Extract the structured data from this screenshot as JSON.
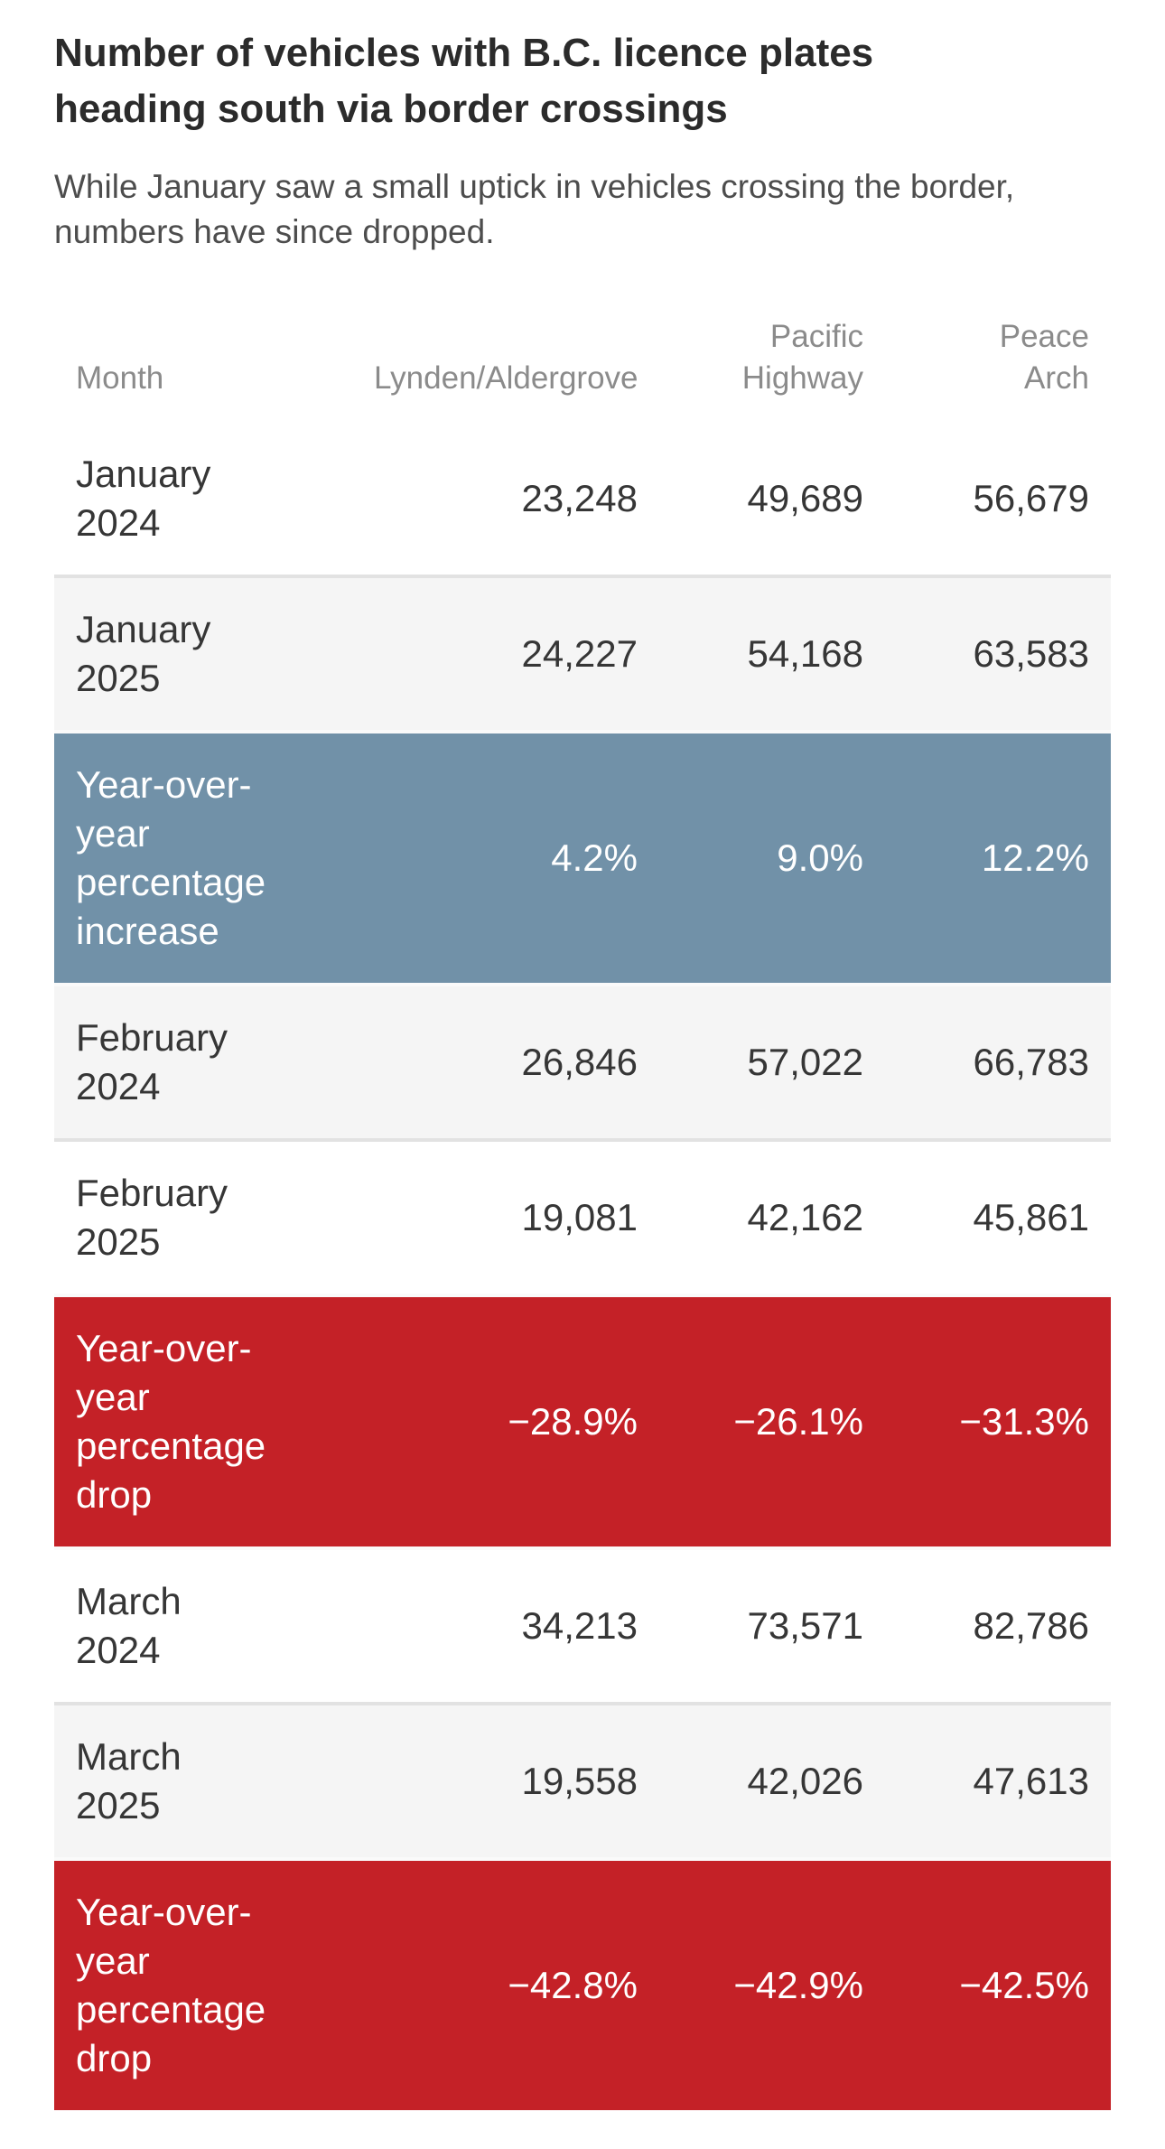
{
  "title": "Number of vehicles with B.C. licence plates heading south via border crossings",
  "subtitle": "While January saw a small uptick in vehicles crossing the border, numbers have since dropped.",
  "colors": {
    "increase_row": "#7191a8",
    "drop_row": "#c42127",
    "stripe_row": "#f5f5f5",
    "row_border": "#e2e2e2",
    "title_text": "#2b2b2b",
    "subtitle_text": "#4d4d4d",
    "header_text": "#8b8b8b",
    "cell_text": "#363636",
    "highlight_text": "#ffffff"
  },
  "table": {
    "columns": [
      "Month",
      "Lynden/Aldergrove",
      "Pacific Highway",
      "Peace Arch"
    ],
    "rows": [
      {
        "label": "January",
        "sublabel": "2024",
        "values": [
          "23,248",
          "49,689",
          "56,679"
        ],
        "variant": "plain"
      },
      {
        "label": "January",
        "sublabel": "2025",
        "values": [
          "24,227",
          "54,168",
          "63,583"
        ],
        "variant": "stripe"
      },
      {
        "label": "Year-over-year percentage increase",
        "sublabel": "",
        "values": [
          "4.2%",
          "9.0%",
          "12.2%"
        ],
        "variant": "increase"
      },
      {
        "label": "February",
        "sublabel": "2024",
        "values": [
          "26,846",
          "57,022",
          "66,783"
        ],
        "variant": "stripe"
      },
      {
        "label": "February",
        "sublabel": "2025",
        "values": [
          "19,081",
          "42,162",
          "45,861"
        ],
        "variant": "plain"
      },
      {
        "label": "Year-over-year percentage drop",
        "sublabel": "",
        "values": [
          "−28.9%",
          "−26.1%",
          "−31.3%"
        ],
        "variant": "drop"
      },
      {
        "label": "March",
        "sublabel": "2024",
        "values": [
          "34,213",
          "73,571",
          "82,786"
        ],
        "variant": "plain"
      },
      {
        "label": "March",
        "sublabel": "2025",
        "values": [
          "19,558",
          "42,026",
          "47,613"
        ],
        "variant": "stripe"
      },
      {
        "label": "Year-over-year percentage drop",
        "sublabel": "",
        "values": [
          "−42.8%",
          "−42.9%",
          "−42.5%"
        ],
        "variant": "drop"
      }
    ]
  },
  "chart_data": {
    "type": "table",
    "title": "Number of vehicles with B.C. licence plates heading south via border crossings",
    "subtitle": "While January saw a small uptick in vehicles crossing the border, numbers have since dropped.",
    "columns": [
      "Month",
      "Lynden/Aldergrove",
      "Pacific Highway",
      "Peace Arch"
    ],
    "rows": [
      {
        "month": "January 2024",
        "lynden_aldergrove": 23248,
        "pacific_highway": 49689,
        "peace_arch": 56679,
        "row_style": "plain"
      },
      {
        "month": "January 2025",
        "lynden_aldergrove": 24227,
        "pacific_highway": 54168,
        "peace_arch": 63583,
        "row_style": "stripe"
      },
      {
        "month": "Year-over-year percentage increase",
        "lynden_aldergrove": "4.2%",
        "pacific_highway": "9.0%",
        "peace_arch": "12.2%",
        "row_style": "blue-highlight"
      },
      {
        "month": "February 2024",
        "lynden_aldergrove": 26846,
        "pacific_highway": 57022,
        "peace_arch": 66783,
        "row_style": "stripe"
      },
      {
        "month": "February 2025",
        "lynden_aldergrove": 19081,
        "pacific_highway": 42162,
        "peace_arch": 45861,
        "row_style": "plain"
      },
      {
        "month": "Year-over-year percentage drop",
        "lynden_aldergrove": "−28.9%",
        "pacific_highway": "−26.1%",
        "peace_arch": "−31.3%",
        "row_style": "red-highlight"
      },
      {
        "month": "March 2024",
        "lynden_aldergrove": 34213,
        "pacific_highway": 73571,
        "peace_arch": 82786,
        "row_style": "plain"
      },
      {
        "month": "March 2025",
        "lynden_aldergrove": 19558,
        "pacific_highway": 42026,
        "peace_arch": 47613,
        "row_style": "stripe"
      },
      {
        "month": "Year-over-year percentage drop",
        "lynden_aldergrove": "−42.8%",
        "pacific_highway": "−42.9%",
        "peace_arch": "−42.5%",
        "row_style": "red-highlight"
      }
    ]
  }
}
